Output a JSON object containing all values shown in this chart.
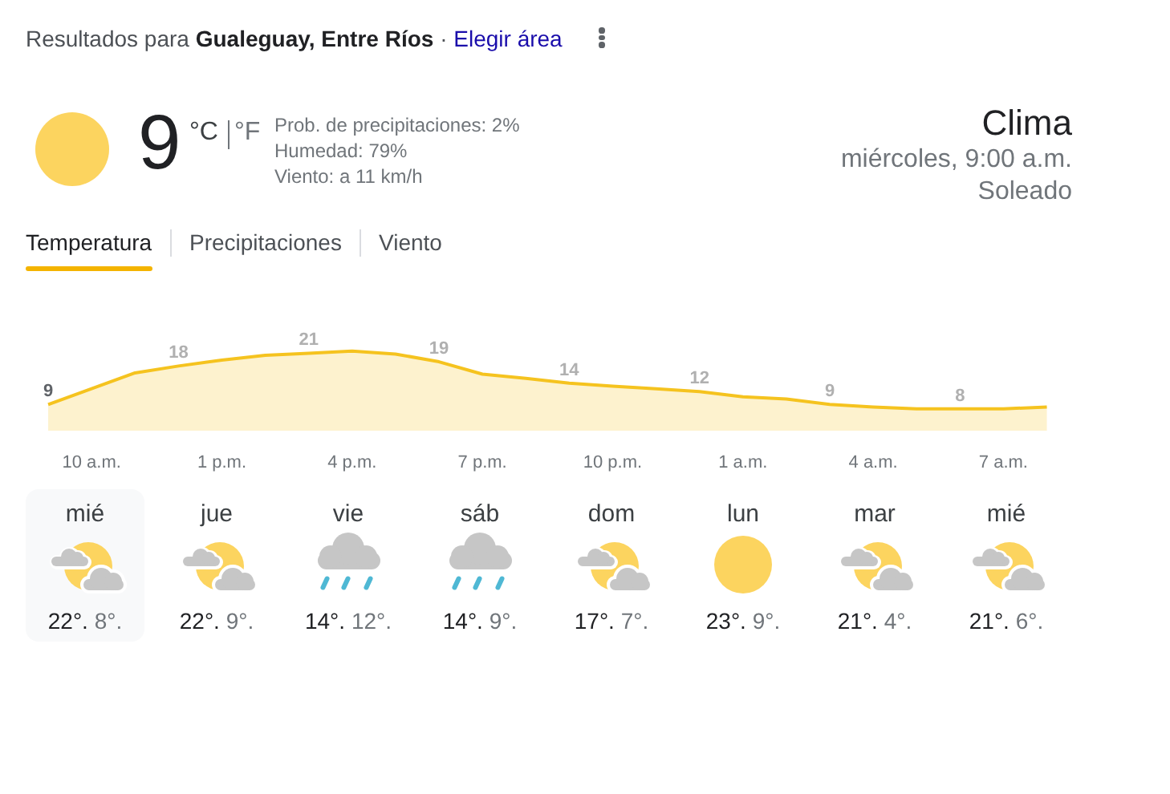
{
  "chart_data": {
    "type": "area",
    "title": "Clima",
    "subtitle": "miércoles, 9:00 a.m.",
    "annotations": [
      "Resultados para",
      "Gualeguay, Entre Ríos",
      "·",
      "Elegir área",
      "9",
      "°C",
      "°F",
      "Prob. de precipitaciones: 2%",
      "Humedad: 79%",
      "Viento: a 11 km/h",
      "Soleado",
      "Temperatura",
      "Precipitaciones",
      "Viento",
      "mié",
      "22°.",
      "8°.",
      "jue",
      "22°.",
      "9°.",
      "vie",
      "14°.",
      "12°.",
      "sáb",
      "14°.",
      "9°.",
      "dom",
      "17°.",
      "7°.",
      "lun",
      "23°.",
      "9°.",
      "mar",
      "21°.",
      "4°.",
      "mié",
      "21°.",
      "6°."
    ],
    "categories": [
      null,
      "10 a.m.",
      null,
      null,
      "1 p.m.",
      null,
      null,
      "4 p.m.",
      null,
      null,
      "7 p.m.",
      null,
      null,
      "10 p.m.",
      null,
      null,
      "1 a.m.",
      null,
      null,
      "4 a.m.",
      null,
      null,
      "7 a.m.",
      null
    ],
    "values": [
      9,
      12.7,
      16.4,
      18,
      19.4,
      20.5,
      21,
      21.5,
      20.8,
      19,
      16.1,
      15.1,
      14,
      13.3,
      12.7,
      12,
      10.8,
      10.3,
      9,
      8.4,
      8,
      8,
      8,
      8.4
    ],
    "value_labels": [
      "9",
      null,
      null,
      "18",
      null,
      null,
      "21",
      null,
      null,
      "19",
      null,
      null,
      "14",
      null,
      null,
      "12",
      null,
      null,
      "9",
      null,
      null,
      "8",
      null,
      null
    ],
    "color": "#f5c31f"
  }
}
